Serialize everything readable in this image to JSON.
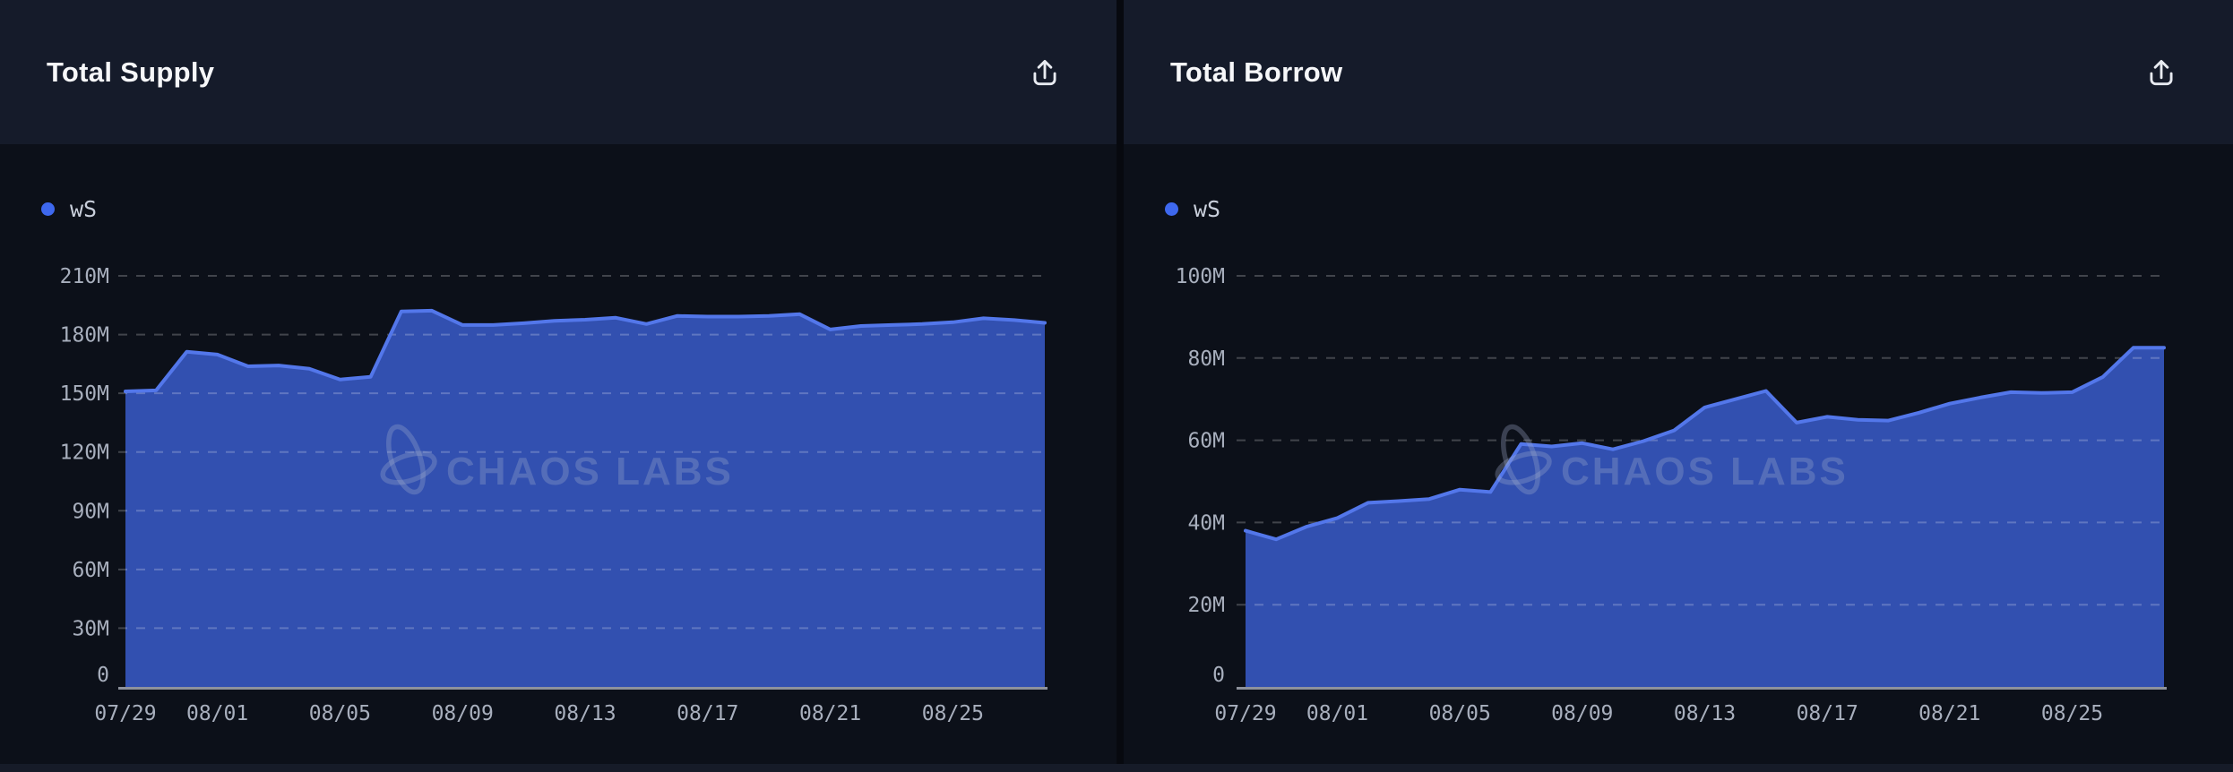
{
  "panels": [
    {
      "title": "Total Supply",
      "export_button": {
        "icon": "share-export-icon"
      },
      "legend": {
        "label": "wS",
        "color": "#3E68EE"
      },
      "watermark": "CHAOS LABS",
      "chart_data": {
        "type": "area",
        "series_name": "wS",
        "x": [
          "07/29",
          "07/30",
          "07/31",
          "08/01",
          "08/02",
          "08/03",
          "08/04",
          "08/05",
          "08/06",
          "08/07",
          "08/08",
          "08/09",
          "08/10",
          "08/11",
          "08/12",
          "08/13",
          "08/14",
          "08/15",
          "08/16",
          "08/17",
          "08/18",
          "08/19",
          "08/20",
          "08/21",
          "08/22",
          "08/23",
          "08/24",
          "08/25",
          "08/26",
          "08/27",
          "08/28"
        ],
        "values": [
          151,
          151.5,
          171.2,
          169.8,
          163.8,
          164.2,
          162.5,
          157,
          158.4,
          191.8,
          192.2,
          184.9,
          184.9,
          185.8,
          187,
          187.6,
          188.6,
          185.4,
          189.5,
          189.2,
          189.2,
          189.5,
          190.4,
          182.6,
          184.4,
          184.9,
          185.4,
          186.3,
          188.3,
          187.4,
          186
        ],
        "unit": "M",
        "ylim": [
          0,
          210
        ],
        "ytick_step": 30,
        "ytick_labels": [
          "0",
          "30M",
          "60M",
          "90M",
          "120M",
          "150M",
          "180M",
          "210M"
        ],
        "xtick_labels": [
          "07/29",
          "08/01",
          "08/05",
          "08/09",
          "08/13",
          "08/17",
          "08/21",
          "08/25"
        ],
        "xtick_indices": [
          0,
          3,
          7,
          11,
          15,
          19,
          23,
          27
        ],
        "grid": "dashed-horizontal",
        "legend_position": "top-left"
      }
    },
    {
      "title": "Total Borrow",
      "export_button": {
        "icon": "share-export-icon"
      },
      "legend": {
        "label": "wS",
        "color": "#3E68EE"
      },
      "watermark": "CHAOS LABS",
      "chart_data": {
        "type": "area",
        "series_name": "wS",
        "x": [
          "07/29",
          "07/30",
          "07/31",
          "08/01",
          "08/02",
          "08/03",
          "08/04",
          "08/05",
          "08/06",
          "08/07",
          "08/08",
          "08/09",
          "08/10",
          "08/11",
          "08/12",
          "08/13",
          "08/14",
          "08/15",
          "08/16",
          "08/17",
          "08/18",
          "08/19",
          "08/20",
          "08/21",
          "08/22",
          "08/23",
          "08/24",
          "08/25",
          "08/26",
          "08/27",
          "08/28"
        ],
        "values": [
          38,
          35.9,
          39,
          41.1,
          44.8,
          45.2,
          45.7,
          48,
          47.4,
          59.1,
          58.5,
          59.3,
          57.8,
          59.8,
          62.4,
          68,
          70,
          72,
          64.3,
          65.7,
          65,
          64.8,
          66.7,
          68.9,
          70.4,
          71.7,
          71.5,
          71.7,
          75.4,
          82.5,
          82.5
        ],
        "unit": "M",
        "ylim": [
          0,
          100
        ],
        "ytick_step": 20,
        "ytick_labels": [
          "0",
          "20M",
          "40M",
          "60M",
          "80M",
          "100M"
        ],
        "xtick_labels": [
          "07/29",
          "08/01",
          "08/05",
          "08/09",
          "08/13",
          "08/17",
          "08/21",
          "08/25"
        ],
        "xtick_indices": [
          0,
          3,
          7,
          11,
          15,
          19,
          23,
          27
        ],
        "grid": "dashed-horizontal",
        "legend_position": "top-left"
      }
    }
  ],
  "colors": {
    "header_bg": "#151B2A",
    "chart_bg": "#0C1019",
    "page_gap": "#07090F",
    "accent_line": "#5377EA",
    "area_fill": "rgba(58,92,203,0.85)",
    "legend_dot": "#3E68EE",
    "gridline": "rgba(255,255,255,0.22)",
    "axis_label": "#A8AFBD",
    "baseline": "#8E929C",
    "watermark": "rgba(160,172,206,0.32)",
    "title_color": "#F6F7F9",
    "icon_color": "#E8EBF1",
    "bottom_strip": "#161B28"
  }
}
